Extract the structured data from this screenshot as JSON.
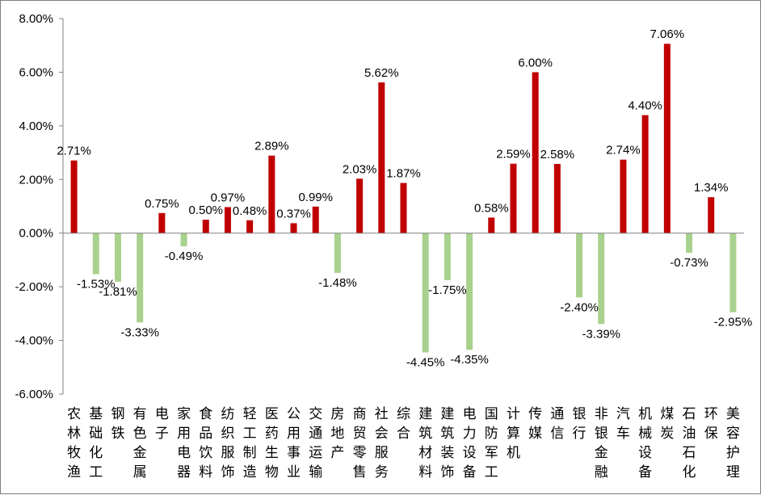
{
  "chart_data": {
    "type": "bar",
    "title": "",
    "xlabel": "",
    "ylabel": "",
    "ylim": [
      -6,
      8
    ],
    "y_tick_step": 2,
    "y_tick_labels": [
      "8.00%",
      "6.00%",
      "4.00%",
      "2.00%",
      "0.00%",
      "-2.00%",
      "-4.00%",
      "-6.00%"
    ],
    "grid": false,
    "legend": "none",
    "colors": {
      "positive": "#c00000",
      "negative": "#a9d18e"
    },
    "categories": [
      "农林牧渔",
      "基础化工",
      "钢铁",
      "有色金属",
      "电子",
      "家用电器",
      "食品饮料",
      "纺织服饰",
      "轻工制造",
      "医药生物",
      "公用事业",
      "交通运输",
      "房地产",
      "商贸零售",
      "社会服务",
      "综合",
      "建筑材料",
      "建筑装饰",
      "电力设备",
      "国防军工",
      "计算机",
      "传媒",
      "通信",
      "银行",
      "非银金融",
      "汽车",
      "机械设备",
      "煤炭",
      "石油石化",
      "环保",
      "美容护理"
    ],
    "category_lines": [
      [
        "农",
        "林",
        "牧",
        "渔"
      ],
      [
        "基",
        "础",
        "化",
        "工"
      ],
      [
        "钢",
        "铁"
      ],
      [
        "有",
        "色",
        "金",
        "属"
      ],
      [
        "电",
        "子"
      ],
      [
        "家",
        "用",
        "电",
        "器"
      ],
      [
        "食",
        "品",
        "饮",
        "料"
      ],
      [
        "纺",
        "织",
        "服",
        "饰"
      ],
      [
        "轻",
        "工",
        "制",
        "造"
      ],
      [
        "医",
        "药",
        "生",
        "物"
      ],
      [
        "公",
        "用",
        "事",
        "业"
      ],
      [
        "交",
        "通",
        "运",
        "输"
      ],
      [
        "房",
        "地",
        "产"
      ],
      [
        "商",
        "贸",
        "零",
        "售"
      ],
      [
        "社",
        "会",
        "服",
        "务"
      ],
      [
        "综",
        "合"
      ],
      [
        "建",
        "筑",
        "材",
        "料"
      ],
      [
        "建",
        "筑",
        "装",
        "饰"
      ],
      [
        "电",
        "力",
        "设",
        "备"
      ],
      [
        "国",
        "防",
        "军",
        "工"
      ],
      [
        "计",
        "算",
        "机"
      ],
      [
        "传",
        "媒"
      ],
      [
        "通",
        "信"
      ],
      [
        "银",
        "行"
      ],
      [
        "非",
        "银",
        "金",
        "融"
      ],
      [
        "汽",
        "车"
      ],
      [
        "机",
        "械",
        "设",
        "备"
      ],
      [
        "煤",
        "炭"
      ],
      [
        "石",
        "油",
        "石",
        "化"
      ],
      [
        "环",
        "保"
      ],
      [
        "美",
        "容",
        "护",
        "理"
      ]
    ],
    "values": [
      2.71,
      -1.53,
      -1.81,
      -3.33,
      0.75,
      -0.49,
      0.5,
      0.97,
      0.48,
      2.89,
      0.37,
      0.99,
      -1.48,
      2.03,
      5.62,
      1.87,
      -4.45,
      -1.75,
      -4.35,
      0.58,
      2.59,
      6.0,
      2.58,
      -2.4,
      -3.39,
      2.74,
      4.4,
      7.06,
      -0.73,
      1.34,
      -2.95
    ],
    "data_labels": [
      "2.71%",
      "-1.53%",
      "-1.81%",
      "-3.33%",
      "0.75%",
      "-0.49%",
      "0.50%",
      "0.97%",
      "0.48%",
      "2.89%",
      "0.37%",
      "0.99%",
      "-1.48%",
      "2.03%",
      "5.62%",
      "1.87%",
      "-4.45%",
      "-1.75%",
      "-4.35%",
      "0.58%",
      "2.59%",
      "6.00%",
      "2.58%",
      "-2.40%",
      "-3.39%",
      "2.74%",
      "4.40%",
      "7.06%",
      "-0.73%",
      "1.34%",
      "-2.95%"
    ]
  }
}
